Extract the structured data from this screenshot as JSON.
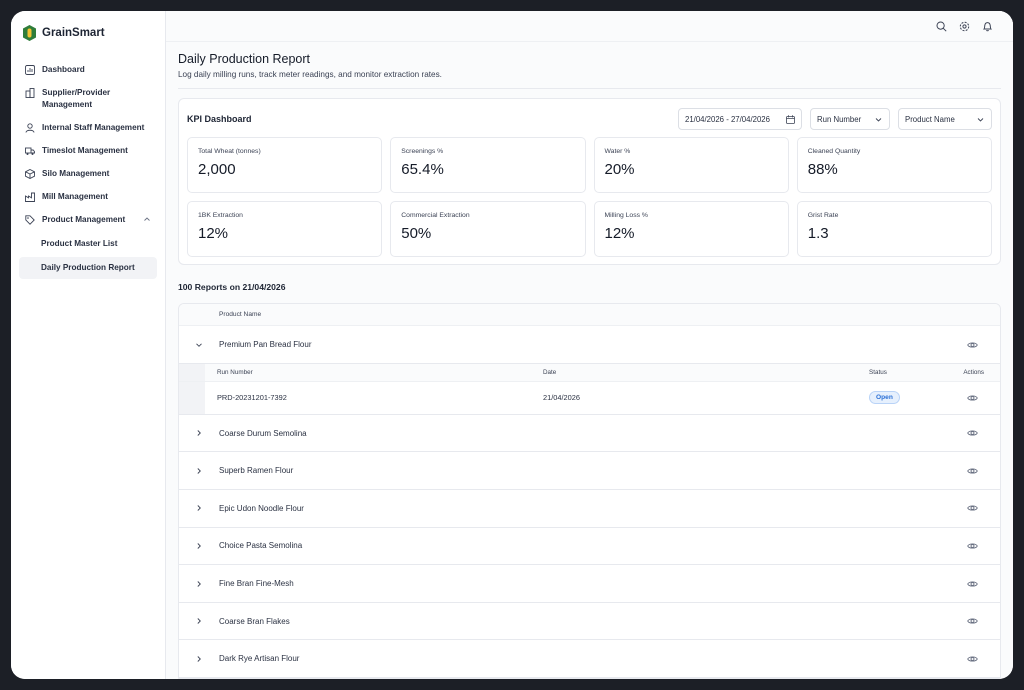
{
  "app": {
    "name": "GrainSmart"
  },
  "sidebar": {
    "items": [
      {
        "label": "Dashboard",
        "icon": "dashboard-icon"
      },
      {
        "label": "Supplier/Provider Management",
        "icon": "building-icon"
      },
      {
        "label": "Internal Staff Management",
        "icon": "user-icon"
      },
      {
        "label": "Timeslot Management",
        "icon": "truck-icon"
      },
      {
        "label": "Silo Management",
        "icon": "box-icon"
      },
      {
        "label": "Mill Management",
        "icon": "factory-icon"
      },
      {
        "label": "Product Management",
        "icon": "tag-icon"
      }
    ],
    "sub_items": [
      {
        "label": "Product Master List"
      },
      {
        "label": "Daily Production Report"
      }
    ]
  },
  "page": {
    "title": "Daily Production Report",
    "subtitle": "Log daily milling runs, track meter readings, and monitor extraction rates."
  },
  "kpi": {
    "title": "KPI Dashboard",
    "date_range": "21/04/2026 - 27/04/2026",
    "run_filter": "Run Number",
    "product_filter": "Product Name",
    "cards": [
      {
        "label": "Total Wheat (tonnes)",
        "value": "2,000"
      },
      {
        "label": "Screenings %",
        "value": "65.4%"
      },
      {
        "label": "Water %",
        "value": "20%"
      },
      {
        "label": "Cleaned Quantity",
        "value": "88%"
      },
      {
        "label": "1BK Extraction",
        "value": "12%"
      },
      {
        "label": "Commercial Extraction",
        "value": "50%"
      },
      {
        "label": "Milling Loss %",
        "value": "12%"
      },
      {
        "label": "Grist Rate",
        "value": "1.3"
      }
    ]
  },
  "reports": {
    "title": "100 Reports on 21/04/2026",
    "column_product": "Product Name",
    "expanded": {
      "product": "Premium Pan Bread Flour",
      "headers": {
        "run": "Run Number",
        "date": "Date",
        "status": "Status",
        "actions": "Actions"
      },
      "row": {
        "run": "PRD-20231201-7392",
        "date": "21/04/2026",
        "status": "Open"
      }
    },
    "products": [
      "Coarse Durum Semolina",
      "Superb Ramen Flour",
      "Epic Udon Noodle Flour",
      "Choice Pasta Semolina",
      "Fine Bran Fine-Mesh",
      "Coarse Bran Flakes",
      "Dark Rye Artisan Flour"
    ]
  }
}
